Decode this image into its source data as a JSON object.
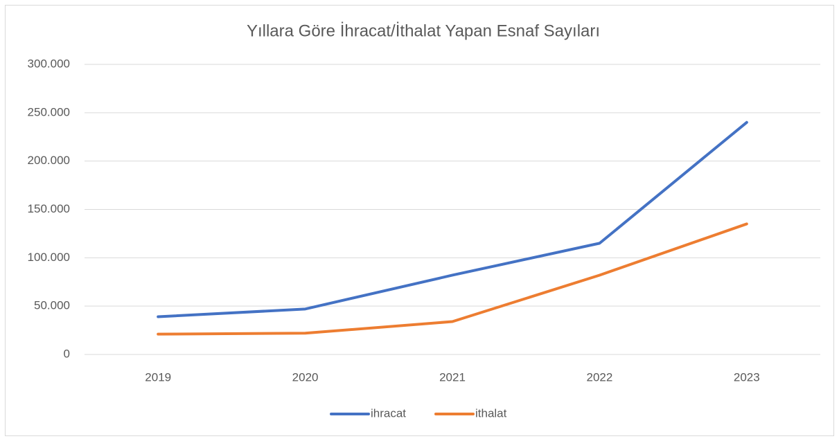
{
  "chart_data": {
    "type": "line",
    "title": "Yıllara Göre İhracat/İthalat Yapan Esnaf Sayıları",
    "categories": [
      "2019",
      "2020",
      "2021",
      "2022",
      "2023"
    ],
    "series": [
      {
        "name": "ihracat",
        "color": "#4472c4",
        "values": [
          39000,
          47000,
          82000,
          115000,
          240000
        ]
      },
      {
        "name": "ithalat",
        "color": "#ed7d31",
        "values": [
          21000,
          22000,
          34000,
          82000,
          135000
        ]
      }
    ],
    "ylim": [
      0,
      300000
    ],
    "yticks": [
      0,
      {
        "value": 50000,
        "label": "50.000"
      },
      {
        "value": 100000,
        "label": "100.000"
      },
      {
        "value": 150000,
        "label": "150.000"
      },
      {
        "value": 200000,
        "label": "200.000"
      },
      {
        "value": 250000,
        "label": "250.000"
      },
      {
        "value": 300000,
        "label": "300.000"
      }
    ],
    "grid": true,
    "legend": "bottom"
  }
}
